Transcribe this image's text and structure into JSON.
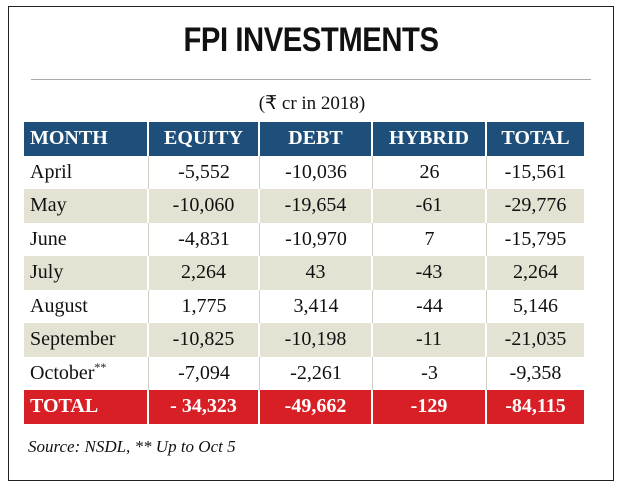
{
  "chart_data": {
    "type": "table",
    "title": "FPI INVESTMENTS",
    "subtitle": "(₹ cr in 2018)",
    "columns": [
      "MONTH",
      "EQUITY",
      "DEBT",
      "HYBRID",
      "TOTAL"
    ],
    "rows": [
      {
        "month": "April",
        "month_note": "",
        "equity": "-5,552",
        "debt": "-10,036",
        "hybrid": "26",
        "total": "-15,561"
      },
      {
        "month": "May",
        "month_note": "",
        "equity": "-10,060",
        "debt": "-19,654",
        "hybrid": "-61",
        "total": "-29,776"
      },
      {
        "month": "June",
        "month_note": "",
        "equity": "-4,831",
        "debt": "-10,970",
        "hybrid": "7",
        "total": "-15,795"
      },
      {
        "month": "July",
        "month_note": "",
        "equity": "2,264",
        "debt": "43",
        "hybrid": "-43",
        "total": "2,264"
      },
      {
        "month": "August",
        "month_note": "",
        "equity": "1,775",
        "debt": "3,414",
        "hybrid": "-44",
        "total": "5,146"
      },
      {
        "month": "September",
        "month_note": "",
        "equity": "-10,825",
        "debt": "-10,198",
        "hybrid": "-11",
        "total": "-21,035"
      },
      {
        "month": "October",
        "month_note": "**",
        "equity": "-7,094",
        "debt": "-2,261",
        "hybrid": "-3",
        "total": "-9,358"
      }
    ],
    "total_row": {
      "month": "TOTAL",
      "equity": "- 34,323",
      "debt": "-49,662",
      "hybrid": "-129",
      "total": "-84,115"
    },
    "source": "Source: NSDL, ** Up to Oct 5"
  },
  "colors": {
    "header_bg": "#1d4f7a",
    "band_bg": "#e4e3d3",
    "total_bg": "#d81f26"
  }
}
